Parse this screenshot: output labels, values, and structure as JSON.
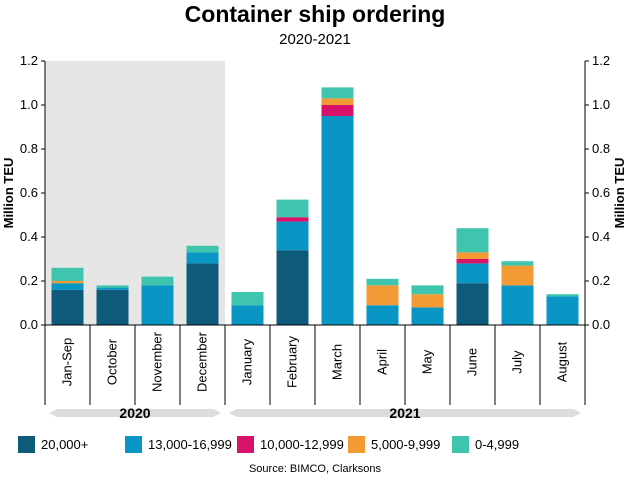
{
  "chart_data": {
    "type": "bar",
    "stacked": true,
    "title": "Container ship ordering",
    "subtitle": "2020-2021",
    "ylabel": "Million TEU",
    "ylim": [
      0,
      1.2
    ],
    "yticks": [
      "0.0",
      "0.2",
      "0.4",
      "0.6",
      "0.8",
      "1.0",
      "1.2"
    ],
    "categories": [
      "Jan-Sep",
      "October",
      "November",
      "December",
      "January",
      "February",
      "March",
      "April",
      "May",
      "June",
      "July",
      "August"
    ],
    "groups": [
      {
        "label": "2020",
        "categories": [
          "Jan-Sep",
          "October",
          "November",
          "December"
        ]
      },
      {
        "label": "2021",
        "categories": [
          "January",
          "February",
          "March",
          "April",
          "May",
          "June",
          "July",
          "August"
        ]
      }
    ],
    "shaded_group": "2020",
    "series": [
      {
        "name": "20,000+",
        "color": "#0d5a7a",
        "values": [
          0.16,
          0.16,
          0,
          0.28,
          0,
          0.34,
          0,
          0,
          0,
          0.19,
          0,
          0
        ]
      },
      {
        "name": "13,000-16,999",
        "color": "#0a96c4",
        "values": [
          0.03,
          0.01,
          0.18,
          0.05,
          0.09,
          0.13,
          0.95,
          0.09,
          0.08,
          0.09,
          0.18,
          0.13
        ]
      },
      {
        "name": "10,000-12,999",
        "color": "#d8126b",
        "values": [
          0,
          0,
          0,
          0,
          0,
          0.02,
          0.05,
          0,
          0,
          0.02,
          0,
          0
        ]
      },
      {
        "name": "5,000-9,999",
        "color": "#f39a34",
        "values": [
          0.01,
          0,
          0,
          0,
          0,
          0,
          0.03,
          0.09,
          0.06,
          0.03,
          0.09,
          0
        ]
      },
      {
        "name": "0-4,999",
        "color": "#3fc5ae",
        "values": [
          0.06,
          0.01,
          0.04,
          0.03,
          0.06,
          0.08,
          0.05,
          0.03,
          0.04,
          0.11,
          0.02,
          0.01
        ]
      }
    ],
    "legend_position": "bottom",
    "source": "Source: BIMCO, Clarksons"
  }
}
